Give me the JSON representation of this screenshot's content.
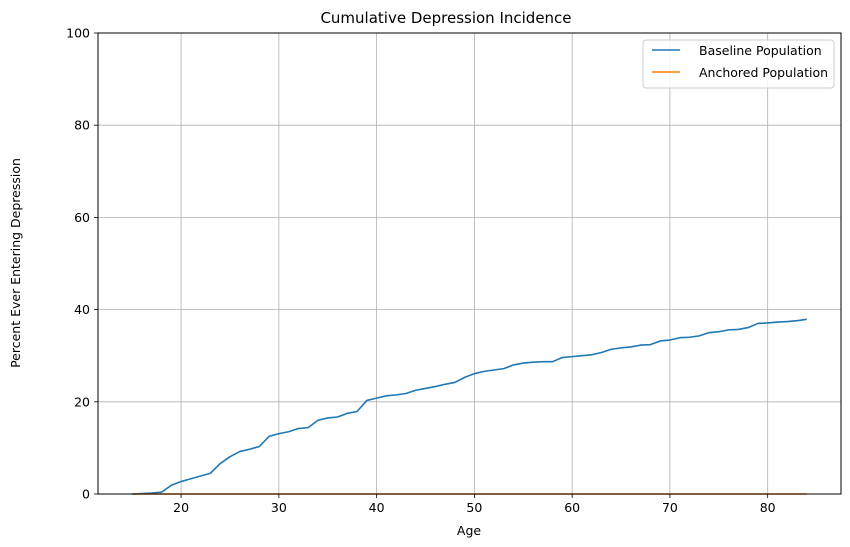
{
  "chart_data": {
    "type": "line",
    "title": "Cumulative Depression Incidence",
    "xlabel": "Age",
    "ylabel": "Percent Ever Entering Depression",
    "xlim": [
      11.5,
      87.5
    ],
    "ylim": [
      0,
      100
    ],
    "xticks": [
      20,
      30,
      40,
      50,
      60,
      70,
      80
    ],
    "yticks": [
      0,
      20,
      40,
      60,
      80,
      100
    ],
    "grid": true,
    "legend_position": "top-right",
    "x": [
      15,
      16,
      17,
      18,
      19,
      20,
      21,
      22,
      23,
      24,
      25,
      26,
      27,
      28,
      29,
      30,
      31,
      32,
      33,
      34,
      35,
      36,
      37,
      38,
      39,
      40,
      41,
      42,
      43,
      44,
      45,
      46,
      47,
      48,
      49,
      50,
      51,
      52,
      53,
      54,
      55,
      56,
      57,
      58,
      59,
      60,
      61,
      62,
      63,
      64,
      65,
      66,
      67,
      68,
      69,
      70,
      71,
      72,
      73,
      74,
      75,
      76,
      77,
      78,
      79,
      80,
      81,
      82,
      83,
      84
    ],
    "series": [
      {
        "name": "Baseline Population",
        "color": "#1f77b4",
        "values": [
          0.0,
          0.1,
          0.2,
          0.4,
          1.9,
          2.7,
          3.3,
          3.9,
          4.5,
          6.6,
          8.1,
          9.2,
          9.7,
          10.3,
          12.5,
          13.1,
          13.5,
          14.2,
          14.4,
          16.0,
          16.5,
          16.7,
          17.5,
          17.9,
          20.3,
          20.8,
          21.3,
          21.5,
          21.8,
          22.5,
          22.9,
          23.3,
          23.8,
          24.2,
          25.3,
          26.1,
          26.6,
          26.9,
          27.2,
          28.0,
          28.4,
          28.6,
          28.7,
          28.7,
          29.6,
          29.8,
          30.0,
          30.2,
          30.7,
          31.4,
          31.7,
          31.9,
          32.3,
          32.4,
          33.2,
          33.4,
          33.9,
          34.0,
          34.3,
          35.0,
          35.2,
          35.6,
          35.7,
          36.1,
          37.0,
          37.1,
          37.3,
          37.4,
          37.6,
          37.9
        ]
      },
      {
        "name": "Anchored Population",
        "color": "#ff7f0e",
        "values": [
          0,
          0,
          0,
          0,
          0,
          0,
          0,
          0,
          0,
          0,
          0,
          0,
          0,
          0,
          0,
          0,
          0,
          0,
          0,
          0,
          0,
          0,
          0,
          0,
          0,
          0,
          0,
          0,
          0,
          0,
          0,
          0,
          0,
          0,
          0,
          0,
          0,
          0,
          0,
          0,
          0,
          0,
          0,
          0,
          0,
          0,
          0,
          0,
          0,
          0,
          0,
          0,
          0,
          0,
          0,
          0,
          0,
          0,
          0,
          0,
          0,
          0,
          0,
          0,
          0,
          0,
          0,
          0,
          0,
          0
        ]
      }
    ]
  }
}
